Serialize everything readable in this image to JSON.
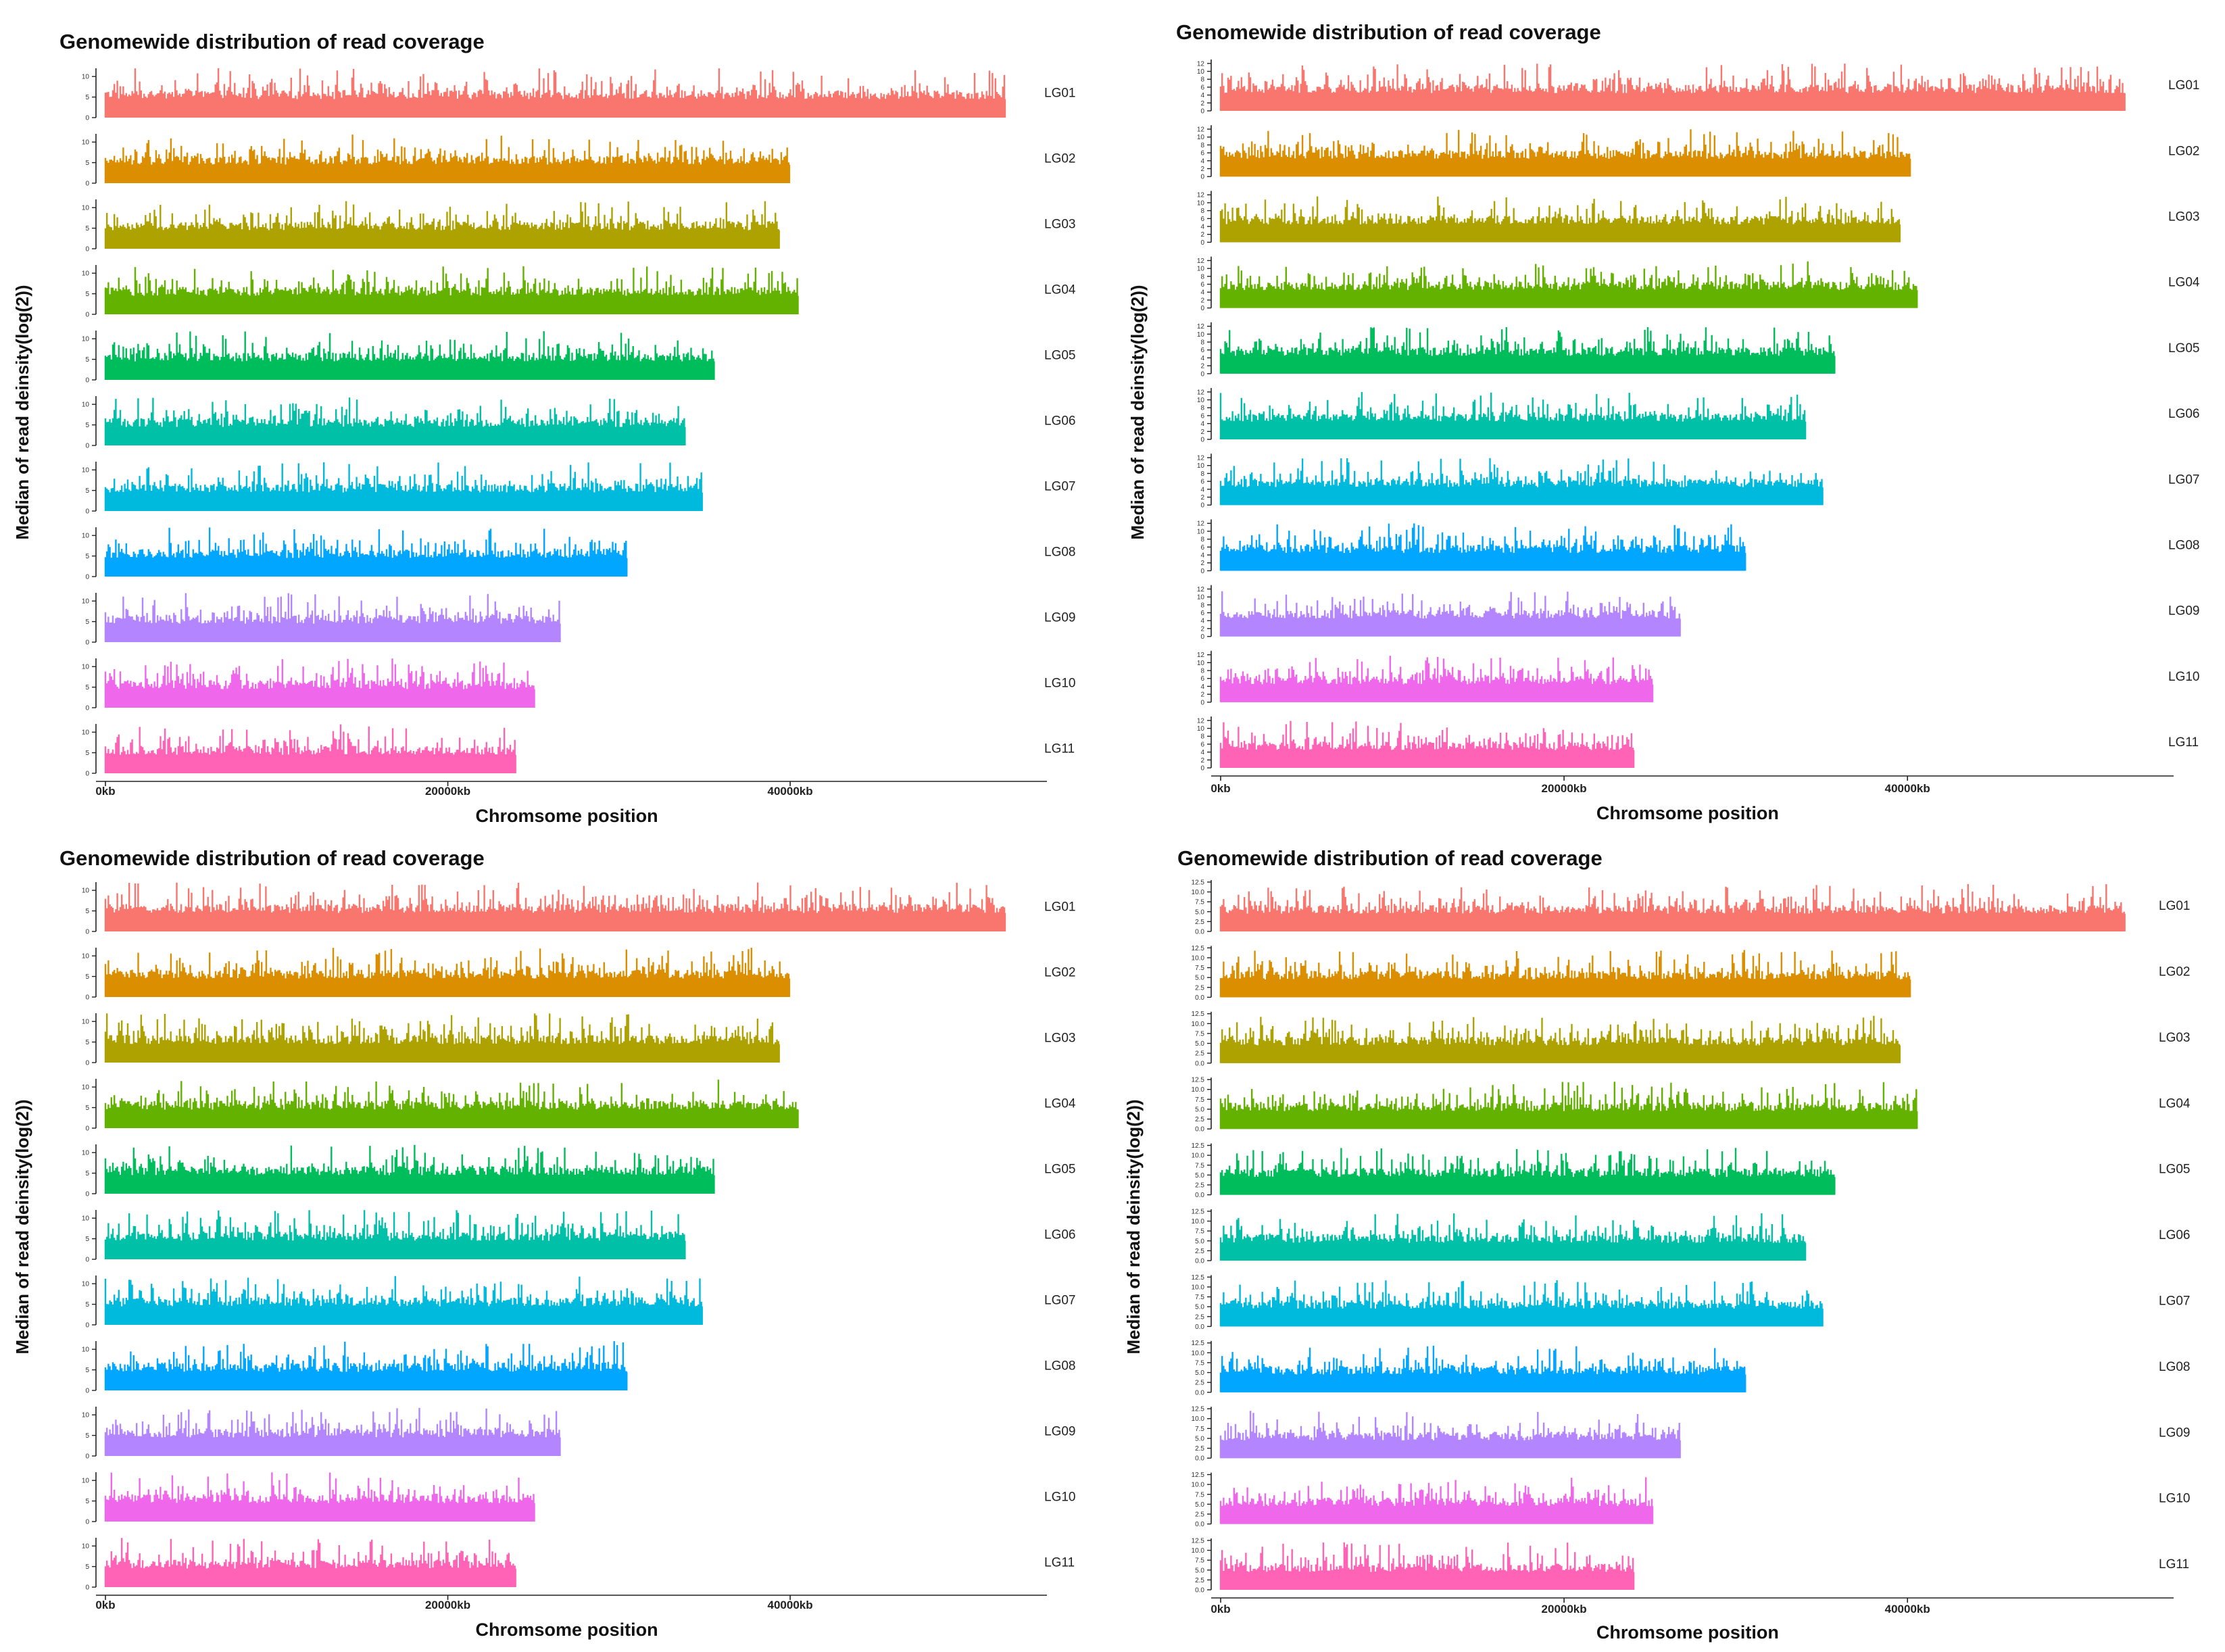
{
  "figure": {
    "description_panels": 4
  },
  "chart_data": [
    {
      "type": "bar",
      "title": "Genomewide distribution of read coverage",
      "xlabel": "Chromsome position",
      "ylabel": "Median of read deinsity(log(2))",
      "x_ticks": [
        "0kb",
        "20000kb",
        "40000kb"
      ],
      "x_tick_values_kb": [
        0,
        20000,
        40000
      ],
      "xlim_kb": [
        0,
        55000
      ],
      "ylim": [
        0,
        12
      ],
      "y_ticks": [
        "0",
        "5",
        "10"
      ],
      "y_tick_values": [
        0,
        5,
        10
      ],
      "baseline_median": 4.5,
      "categories": [
        "LG01",
        "LG02",
        "LG03",
        "LG04",
        "LG05",
        "LG06",
        "LG07",
        "LG08",
        "LG09",
        "LG10",
        "LG11"
      ],
      "chromosome_length_kb": [
        52600,
        40000,
        39400,
        40500,
        35600,
        33900,
        34900,
        30500,
        26600,
        25100,
        24000
      ],
      "colors": [
        "#F8766D",
        "#DB8E00",
        "#AEA200",
        "#64B200",
        "#00BD5C",
        "#00C1A7",
        "#00BADE",
        "#00A6FF",
        "#B385FF",
        "#EF67EB",
        "#FF63B6"
      ]
    },
    {
      "type": "bar",
      "title": "Genomewide distribution of read coverage",
      "xlabel": "Chromsome position",
      "ylabel": "Median of read deinsity(log(2))",
      "x_ticks": [
        "0kb",
        "20000kb",
        "40000kb"
      ],
      "x_tick_values_kb": [
        0,
        20000,
        40000
      ],
      "xlim_kb": [
        0,
        55500
      ],
      "ylim": [
        0,
        13
      ],
      "y_ticks": [
        "0",
        "2",
        "4",
        "6",
        "8",
        "10",
        "12"
      ],
      "y_tick_values": [
        0,
        2,
        4,
        6,
        8,
        10,
        12
      ],
      "baseline_median": 4.5,
      "categories": [
        "LG01",
        "LG02",
        "LG03",
        "LG04",
        "LG05",
        "LG06",
        "LG07",
        "LG08",
        "LG09",
        "LG10",
        "LG11"
      ],
      "chromosome_length_kb": [
        52700,
        40200,
        39600,
        40600,
        35800,
        34100,
        35100,
        30600,
        26800,
        25200,
        24100
      ],
      "colors": [
        "#F8766D",
        "#DB8E00",
        "#AEA200",
        "#64B200",
        "#00BD5C",
        "#00C1A7",
        "#00BADE",
        "#00A6FF",
        "#B385FF",
        "#EF67EB",
        "#FF63B6"
      ]
    },
    {
      "type": "bar",
      "title": "Genomewide distribution of read coverage",
      "xlabel": "Chromsome position",
      "ylabel": "Median of read deinsity(log(2))",
      "x_ticks": [
        "0kb",
        "20000kb",
        "40000kb"
      ],
      "x_tick_values_kb": [
        0,
        20000,
        40000
      ],
      "xlim_kb": [
        0,
        55000
      ],
      "ylim": [
        0,
        12
      ],
      "y_ticks": [
        "0",
        "5",
        "10"
      ],
      "y_tick_values": [
        0,
        5,
        10
      ],
      "baseline_median": 4.5,
      "categories": [
        "LG01",
        "LG02",
        "LG03",
        "LG04",
        "LG05",
        "LG06",
        "LG07",
        "LG08",
        "LG09",
        "LG10",
        "LG11"
      ],
      "chromosome_length_kb": [
        52600,
        40000,
        39400,
        40500,
        35600,
        33900,
        34900,
        30500,
        26600,
        25100,
        24000
      ],
      "colors": [
        "#F8766D",
        "#DB8E00",
        "#AEA200",
        "#64B200",
        "#00BD5C",
        "#00C1A7",
        "#00BADE",
        "#00A6FF",
        "#B385FF",
        "#EF67EB",
        "#FF63B6"
      ]
    },
    {
      "type": "bar",
      "title": "Genomewide distribution of read coverage",
      "xlabel": "Chromsome position",
      "ylabel": "Median of read deinsity(log(2))",
      "x_ticks": [
        "0kb",
        "20000kb",
        "40000kb"
      ],
      "x_tick_values_kb": [
        0,
        20000,
        40000
      ],
      "xlim_kb": [
        0,
        55500
      ],
      "ylim": [
        0,
        13
      ],
      "y_ticks": [
        "0.0",
        "2.5",
        "5.0",
        "7.5",
        "10.0",
        "12.5"
      ],
      "y_tick_values": [
        0,
        2.5,
        5,
        7.5,
        10,
        12.5
      ],
      "baseline_median": 4.5,
      "categories": [
        "LG01",
        "LG02",
        "LG03",
        "LG04",
        "LG05",
        "LG06",
        "LG07",
        "LG08",
        "LG09",
        "LG10",
        "LG11"
      ],
      "chromosome_length_kb": [
        52700,
        40200,
        39600,
        40600,
        35800,
        34100,
        35100,
        30600,
        26800,
        25200,
        24100
      ],
      "colors": [
        "#F8766D",
        "#DB8E00",
        "#AEA200",
        "#64B200",
        "#00BD5C",
        "#00C1A7",
        "#00BADE",
        "#00A6FF",
        "#B385FF",
        "#EF67EB",
        "#FF63B6"
      ]
    }
  ]
}
